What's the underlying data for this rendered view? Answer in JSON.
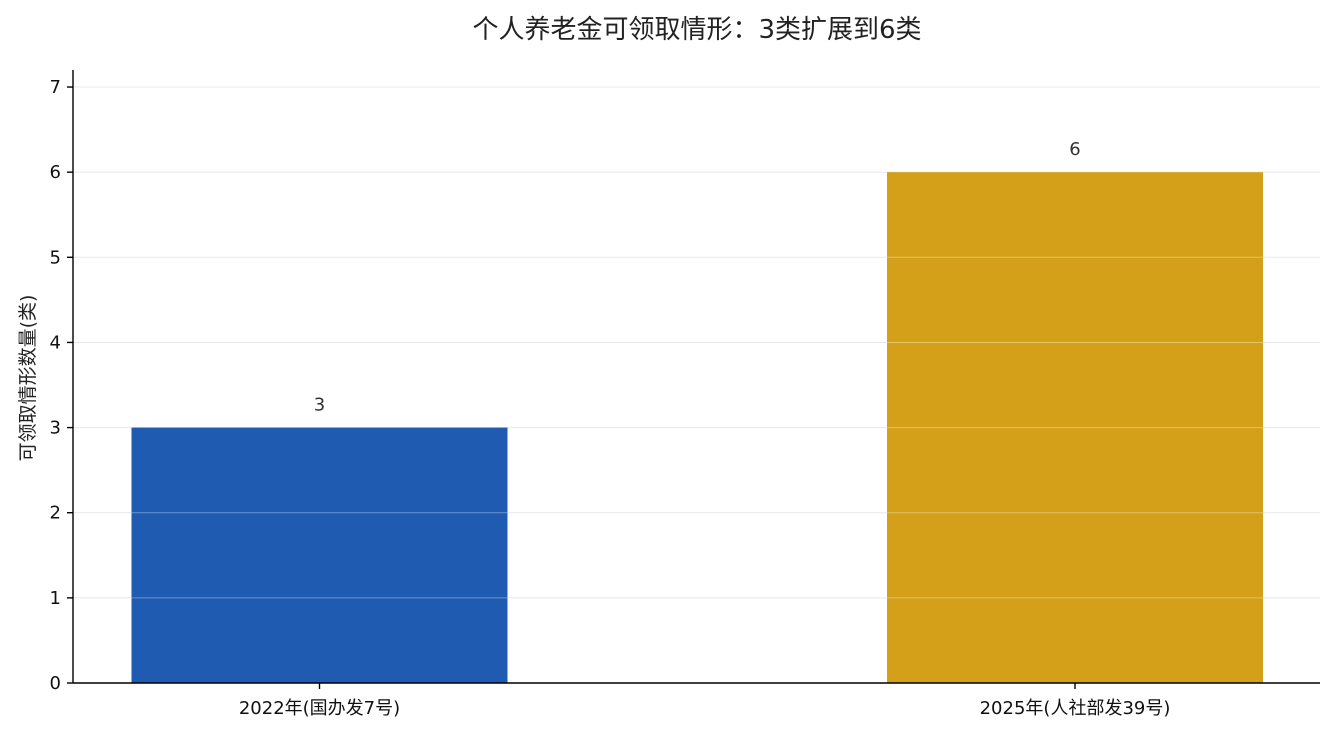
{
  "chart_data": {
    "type": "bar",
    "title": "个人养老金可领取情形：3类扩展到6类",
    "xlabel": "",
    "ylabel": "可领取情形数量(类)",
    "categories": [
      "2022年(国办发7号)",
      "2025年(人社部发39号)"
    ],
    "values": [
      3,
      6
    ],
    "colors": [
      "#1f5bb0",
      "#d4a019"
    ],
    "ylim": [
      0,
      7.2
    ],
    "yticks": [
      0,
      1,
      2,
      3,
      4,
      5,
      6,
      7
    ],
    "grid": true,
    "legend": "none"
  }
}
